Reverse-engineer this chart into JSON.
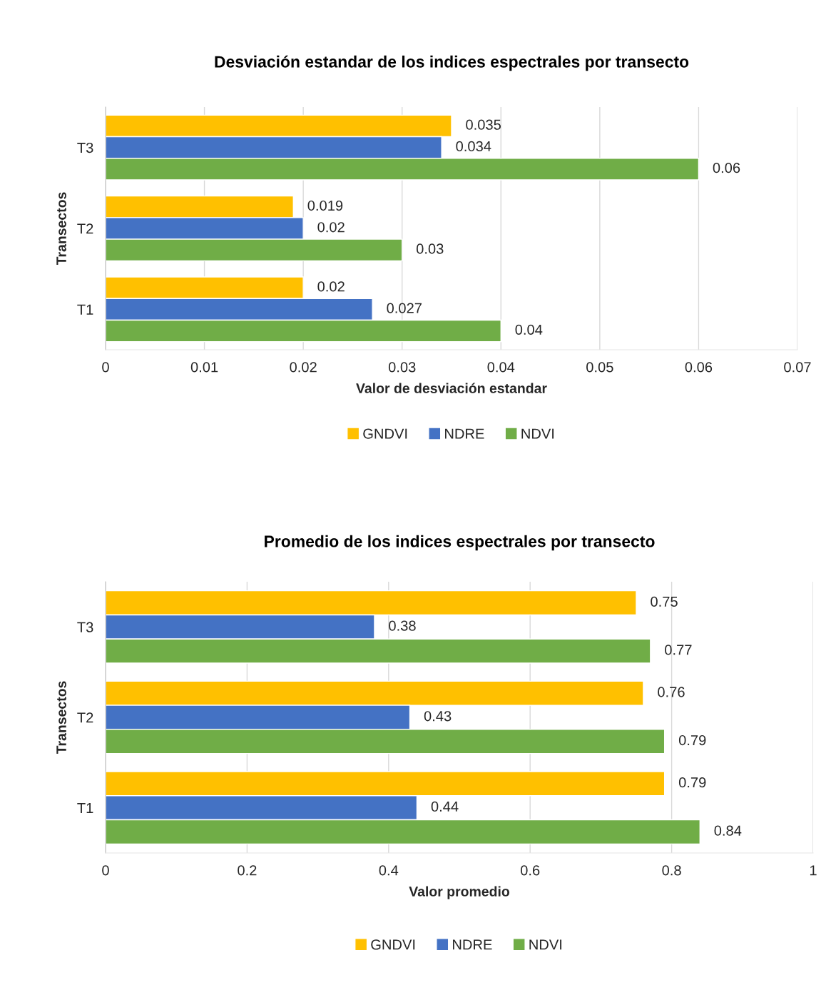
{
  "chart_data": [
    {
      "type": "bar",
      "orientation": "horizontal",
      "title": "Desviación estandar de los indices espectrales por transecto",
      "xlabel": "Valor de desviación estandar",
      "ylabel": "Transectos",
      "categories": [
        "T3",
        "T2",
        "T1"
      ],
      "series": [
        {
          "name": "GNDVI",
          "color": "#ffc000",
          "values": [
            0.035,
            0.019,
            0.02
          ]
        },
        {
          "name": "NDRE",
          "color": "#4472c4",
          "values": [
            0.034,
            0.02,
            0.027
          ]
        },
        {
          "name": "NDVI",
          "color": "#70ad47",
          "values": [
            0.06,
            0.03,
            0.04
          ]
        }
      ],
      "xlim": [
        0,
        0.07
      ],
      "xticks": [
        0,
        0.01,
        0.02,
        0.03,
        0.04,
        0.05,
        0.06,
        0.07
      ],
      "grid": "x",
      "legend": "bottom",
      "data_labels": true
    },
    {
      "type": "bar",
      "orientation": "horizontal",
      "title": "Promedio de los indices espectrales por transecto",
      "xlabel": "Valor promedio",
      "ylabel": "Transectos",
      "categories": [
        "T3",
        "T2",
        "T1"
      ],
      "series": [
        {
          "name": "GNDVI",
          "color": "#ffc000",
          "values": [
            0.75,
            0.76,
            0.79
          ]
        },
        {
          "name": "NDRE",
          "color": "#4472c4",
          "values": [
            0.38,
            0.43,
            0.44
          ]
        },
        {
          "name": "NDVI",
          "color": "#70ad47",
          "values": [
            0.77,
            0.79,
            0.84
          ]
        }
      ],
      "xlim": [
        0,
        1
      ],
      "xticks": [
        0,
        0.2,
        0.4,
        0.6,
        0.8,
        1
      ],
      "grid": "x",
      "legend": "bottom",
      "data_labels": true
    }
  ]
}
